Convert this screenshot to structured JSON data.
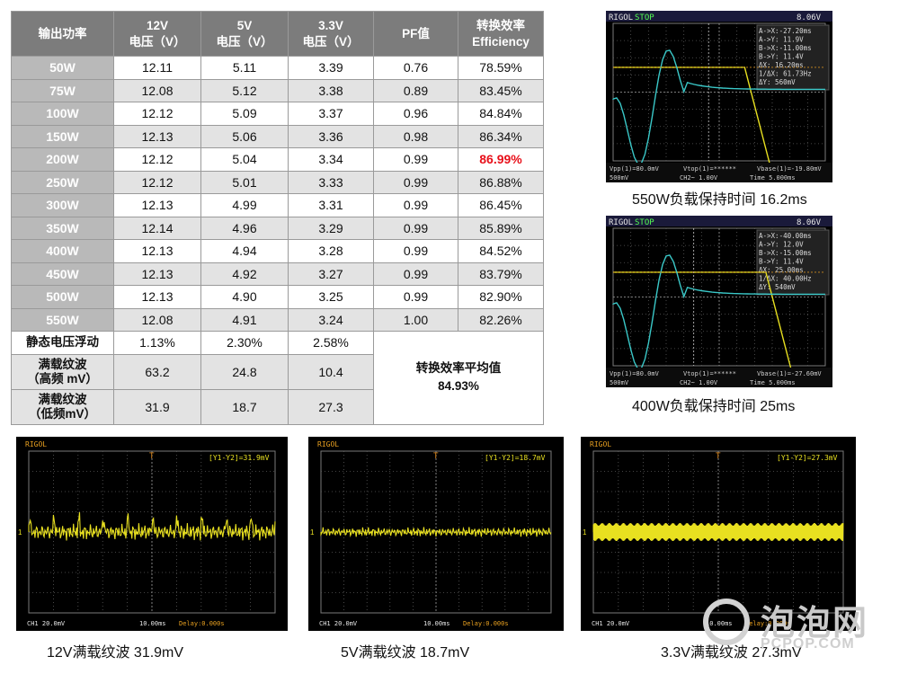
{
  "table": {
    "headers": [
      "输出功率",
      "12V\n电压（V）",
      "5V\n电压（V）",
      "3.3V\n电压（V）",
      "PF值",
      "转换效率\nEfficiency"
    ],
    "rows": [
      [
        "50W",
        "12.11",
        "5.11",
        "3.39",
        "0.76",
        "78.59%"
      ],
      [
        "75W",
        "12.08",
        "5.12",
        "3.38",
        "0.89",
        "83.45%"
      ],
      [
        "100W",
        "12.12",
        "5.09",
        "3.37",
        "0.96",
        "84.84%"
      ],
      [
        "150W",
        "12.13",
        "5.06",
        "3.36",
        "0.98",
        "86.34%"
      ],
      [
        "200W",
        "12.12",
        "5.04",
        "3.34",
        "0.99",
        "86.99%"
      ],
      [
        "250W",
        "12.12",
        "5.01",
        "3.33",
        "0.99",
        "86.88%"
      ],
      [
        "300W",
        "12.13",
        "4.99",
        "3.31",
        "0.99",
        "86.45%"
      ],
      [
        "350W",
        "12.14",
        "4.96",
        "3.29",
        "0.99",
        "85.89%"
      ],
      [
        "400W",
        "12.13",
        "4.94",
        "3.28",
        "0.99",
        "84.52%"
      ],
      [
        "450W",
        "12.13",
        "4.92",
        "3.27",
        "0.99",
        "83.79%"
      ],
      [
        "500W",
        "12.13",
        "4.90",
        "3.25",
        "0.99",
        "82.90%"
      ],
      [
        "550W",
        "12.08",
        "4.91",
        "3.24",
        "1.00",
        "82.26%"
      ]
    ],
    "highlight_color": "#e8101a",
    "extra_rows": [
      {
        "label": "静态电压浮动",
        "values": [
          "1.13%",
          "2.30%",
          "2.58%"
        ]
      },
      {
        "label": "满载纹波\n（高频 mV）",
        "values": [
          "63.2",
          "24.8",
          "10.4"
        ]
      },
      {
        "label": "满载纹波\n（低频mV）",
        "values": [
          "31.9",
          "18.7",
          "27.3"
        ]
      }
    ],
    "average_label": "转换效率平均值",
    "average_value": "84.93%"
  },
  "holdup_scopes": [
    {
      "caption": "550W负载保持时间 16.2ms",
      "brand": "RIGOL",
      "state": "STOP",
      "trigger_level": "8.06V",
      "readouts": [
        "A->X:-27.20ms",
        "A->Y: 11.9V",
        "B->X:-11.00ms",
        "B->Y: 11.4V",
        "ΔX: 16.20ms",
        "1/ΔX: 61.73Hz",
        "ΔY: 560mV"
      ],
      "footer": [
        "Vpp(1)=80.0mV",
        "Vtop(1)=******",
        "Vbase(1)=-19.80mV"
      ],
      "footer2": [
        "500mV",
        "CH2~ 1.00V",
        "Time 5.000ms"
      ]
    },
    {
      "caption": "400W负载保持时间 25ms",
      "brand": "RIGOL",
      "state": "STOP",
      "trigger_level": "8.06V",
      "readouts": [
        "A->X:-40.00ms",
        "A->Y: 12.0V",
        "B->X:-15.00ms",
        "B->Y: 11.4V",
        "ΔX: 25.00ms",
        "1/ΔX: 40.00Hz",
        "ΔY: 540mV"
      ],
      "footer": [
        "Vpp(1)=80.0mV",
        "Vtop(1)=******",
        "Vbase(1)=-27.60mV"
      ],
      "footer2": [
        "500mV",
        "CH2~ 1.00V",
        "Time 5.000ms"
      ]
    }
  ],
  "ripple_scopes": [
    {
      "caption": "12V满载纹波 31.9mV",
      "brand": "RIGOL",
      "readout": "[Y1-Y2]=31.9mV",
      "ch": "CH1 20.0mV",
      "time": "10.00ms",
      "delay": "Delay:0.000s"
    },
    {
      "caption": "5V满载纹波 18.7mV",
      "brand": "RIGOL",
      "readout": "[Y1-Y2]=18.7mV",
      "ch": "CH1 20.0mV",
      "time": "10.00ms",
      "delay": "Delay:0.000s"
    },
    {
      "caption": "3.3V满载纹波 27.3mV",
      "brand": "RIGOL",
      "readout": "[Y1-Y2]=27.3mV",
      "ch": "CH1 20.0mV",
      "time": "10.00ms",
      "delay": "Delay:0.000s"
    }
  ],
  "watermark": {
    "text": "泡泡网",
    "url": "PCPOP.COM"
  }
}
